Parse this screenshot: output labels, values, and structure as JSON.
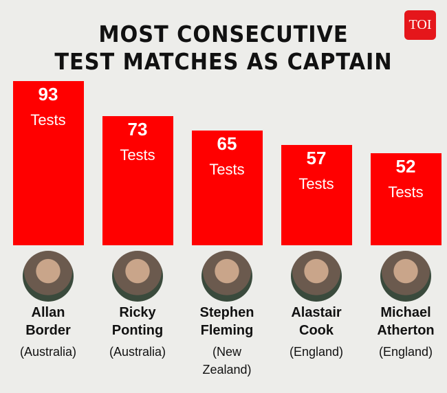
{
  "chart_data": {
    "type": "bar",
    "title": [
      "MOST CONSECUTIVE",
      "TEST MATCHES AS CAPTAIN"
    ],
    "logo": "TOI",
    "categories": [
      "Allan Border",
      "Ricky Ponting",
      "Stephen Fleming",
      "Alastair Cook",
      "Michael Atherton"
    ],
    "countries": [
      "(Australia)",
      "(Australia)",
      "(New Zealand)",
      "(England)",
      "(England)"
    ],
    "values": [
      93,
      73,
      65,
      57,
      52
    ],
    "unit_label": "Tests",
    "color": "#ff0000"
  }
}
